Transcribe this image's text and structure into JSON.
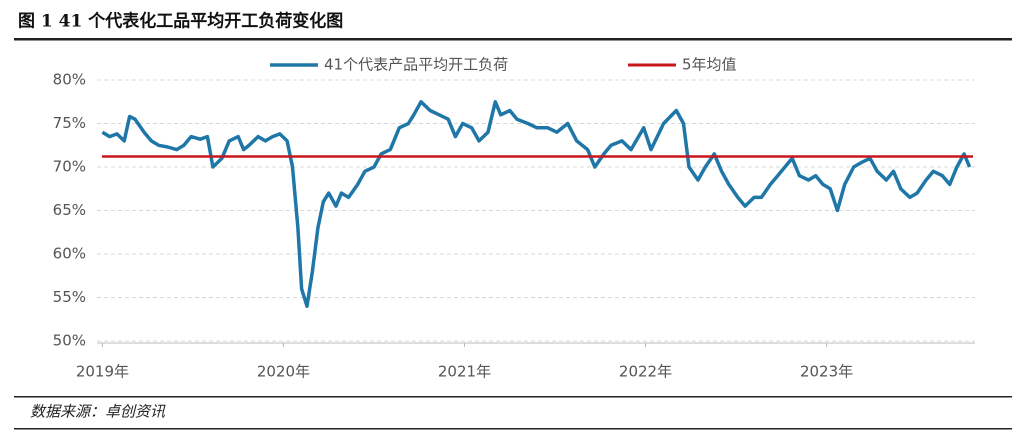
{
  "chart_data": {
    "type": "line",
    "title": "图 1 41 个代表化工品平均开工负荷变化图",
    "source": "数据来源：卓创资讯",
    "x": [
      2019.0,
      2019.04,
      2019.08,
      2019.12,
      2019.15,
      2019.18,
      2019.23,
      2019.27,
      2019.31,
      2019.36,
      2019.41,
      2019.45,
      2019.49,
      2019.54,
      2019.58,
      2019.61,
      2019.66,
      2019.7,
      2019.75,
      2019.78,
      2019.81,
      2019.86,
      2019.9,
      2019.94,
      2019.98,
      2020.02,
      2020.05,
      2020.08,
      2020.1,
      2020.13,
      2020.16,
      2020.19,
      2020.22,
      2020.25,
      2020.29,
      2020.32,
      2020.36,
      2020.41,
      2020.45,
      2020.5,
      2020.54,
      2020.59,
      2020.64,
      2020.69,
      2020.72,
      2020.76,
      2020.81,
      2020.86,
      2020.91,
      2020.95,
      2020.99,
      2021.04,
      2021.08,
      2021.13,
      2021.17,
      2021.2,
      2021.25,
      2021.29,
      2021.35,
      2021.4,
      2021.46,
      2021.51,
      2021.57,
      2021.62,
      2021.68,
      2021.72,
      2021.77,
      2021.81,
      2021.87,
      2021.92,
      2021.99,
      2022.03,
      2022.1,
      2022.17,
      2022.21,
      2022.24,
      2022.29,
      2022.33,
      2022.38,
      2022.42,
      2022.46,
      2022.51,
      2022.55,
      2022.6,
      2022.64,
      2022.69,
      2022.73,
      2022.77,
      2022.81,
      2022.85,
      2022.9,
      2022.94,
      2022.98,
      2023.02,
      2023.06,
      2023.1,
      2023.15,
      2023.19,
      2023.24,
      2023.28,
      2023.33,
      2023.37,
      2023.41,
      2023.46,
      2023.5,
      2023.55,
      2023.59,
      2023.64,
      2023.68,
      2023.72,
      2023.76,
      2023.79
    ],
    "series": [
      {
        "name": "41个代表产品平均开工负荷",
        "color": "#1f77a8",
        "values": [
          74,
          73.5,
          73.8,
          73,
          75.8,
          75.5,
          74,
          73,
          72.5,
          72.3,
          72,
          72.5,
          73.5,
          73.2,
          73.5,
          70,
          71,
          73,
          73.5,
          72,
          72.5,
          73.5,
          73,
          73.5,
          73.8,
          73,
          70,
          63,
          56,
          54,
          58,
          63,
          66,
          67,
          65.5,
          67,
          66.5,
          68,
          69.5,
          70,
          71.5,
          72,
          74.5,
          75,
          76,
          77.5,
          76.5,
          76,
          75.5,
          73.5,
          75,
          74.5,
          73,
          74,
          77.5,
          76,
          76.5,
          75.5,
          75,
          74.5,
          74.5,
          74,
          75,
          73,
          72,
          70,
          71.5,
          72.5,
          73,
          72,
          74.5,
          72,
          75,
          76.5,
          75,
          70,
          68.5,
          70,
          71.5,
          69.5,
          68,
          66.5,
          65.5,
          66.5,
          66.5,
          68,
          69,
          70,
          71,
          69,
          68.5,
          69,
          68,
          67.5,
          65,
          68,
          70,
          70.5,
          71,
          69.5,
          68.5,
          69.5,
          67.5,
          66.5,
          67,
          68.5,
          69.5,
          69,
          68,
          70,
          71.5,
          70
        ]
      }
    ],
    "reference": {
      "name": "5年均值",
      "value": 71.2,
      "color": "#c8161d"
    },
    "xlim": [
      2018.97,
      2023.82
    ],
    "xticks": [
      {
        "value": 2019,
        "label": "2019年"
      },
      {
        "value": 2020,
        "label": "2020年"
      },
      {
        "value": 2021,
        "label": "2021年"
      },
      {
        "value": 2022,
        "label": "2022年"
      },
      {
        "value": 2023,
        "label": "2023年"
      }
    ],
    "ylim": [
      50,
      80
    ],
    "yticks": [
      {
        "value": 50,
        "label": "50%"
      },
      {
        "value": 55,
        "label": "55%"
      },
      {
        "value": 60,
        "label": "60%"
      },
      {
        "value": 65,
        "label": "65%"
      },
      {
        "value": 70,
        "label": "70%"
      },
      {
        "value": 75,
        "label": "75%"
      },
      {
        "value": 80,
        "label": "80%"
      }
    ],
    "grid": true
  }
}
